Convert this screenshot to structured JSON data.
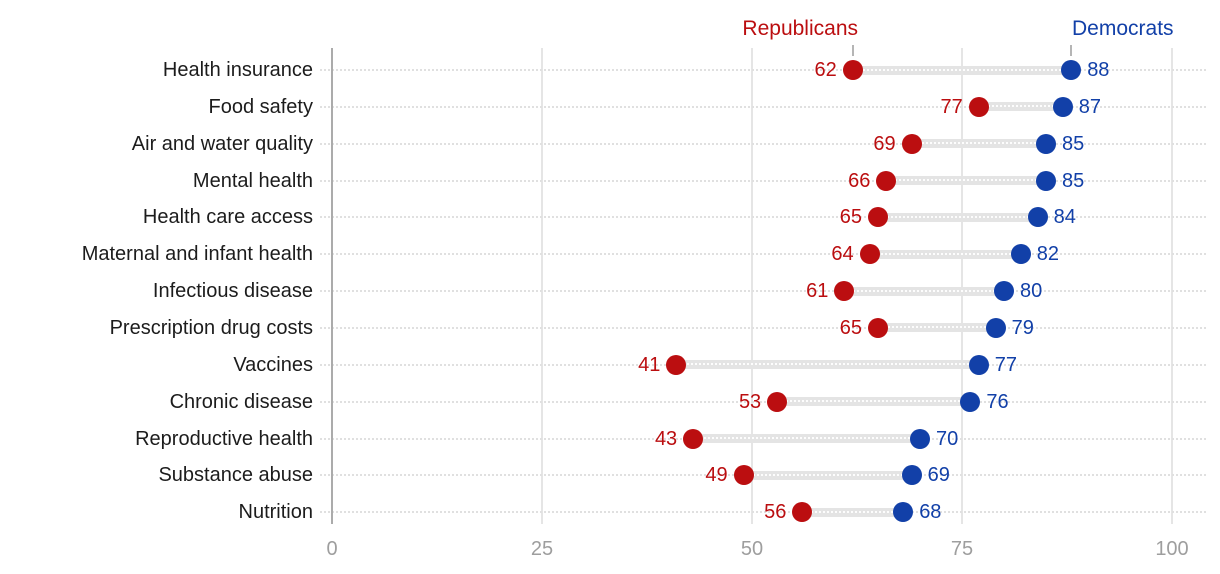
{
  "chart_data": {
    "type": "scatter",
    "variant": "dumbbell-dot-plot",
    "title": "",
    "categories": [
      "Health insurance",
      "Food safety",
      "Air and water quality",
      "Mental health",
      "Health care access",
      "Maternal and infant health",
      "Infectious disease",
      "Prescription drug costs",
      "Vaccines",
      "Chronic disease",
      "Reproductive health",
      "Substance abuse",
      "Nutrition"
    ],
    "series": [
      {
        "name": "Republicans",
        "color": "#BB0E10",
        "values": [
          62,
          77,
          69,
          66,
          65,
          64,
          61,
          65,
          41,
          53,
          43,
          49,
          56
        ]
      },
      {
        "name": "Democrats",
        "color": "#1240A8",
        "values": [
          88,
          87,
          85,
          85,
          84,
          82,
          80,
          79,
          77,
          76,
          70,
          69,
          68
        ]
      }
    ],
    "xlim": [
      0,
      100
    ],
    "x_ticks": [
      "0",
      "25",
      "50",
      "75",
      "100"
    ],
    "grid": "solid vertical gridlines at ticks; dotted horizontal guide per row; zero axis darker",
    "legend_position": "top, series labels above first-row dots with short leader ticks",
    "connector_color": "#E4E4E4",
    "axis_label_color": "#9E9E9E",
    "category_label_color": "#1C1C1C"
  }
}
